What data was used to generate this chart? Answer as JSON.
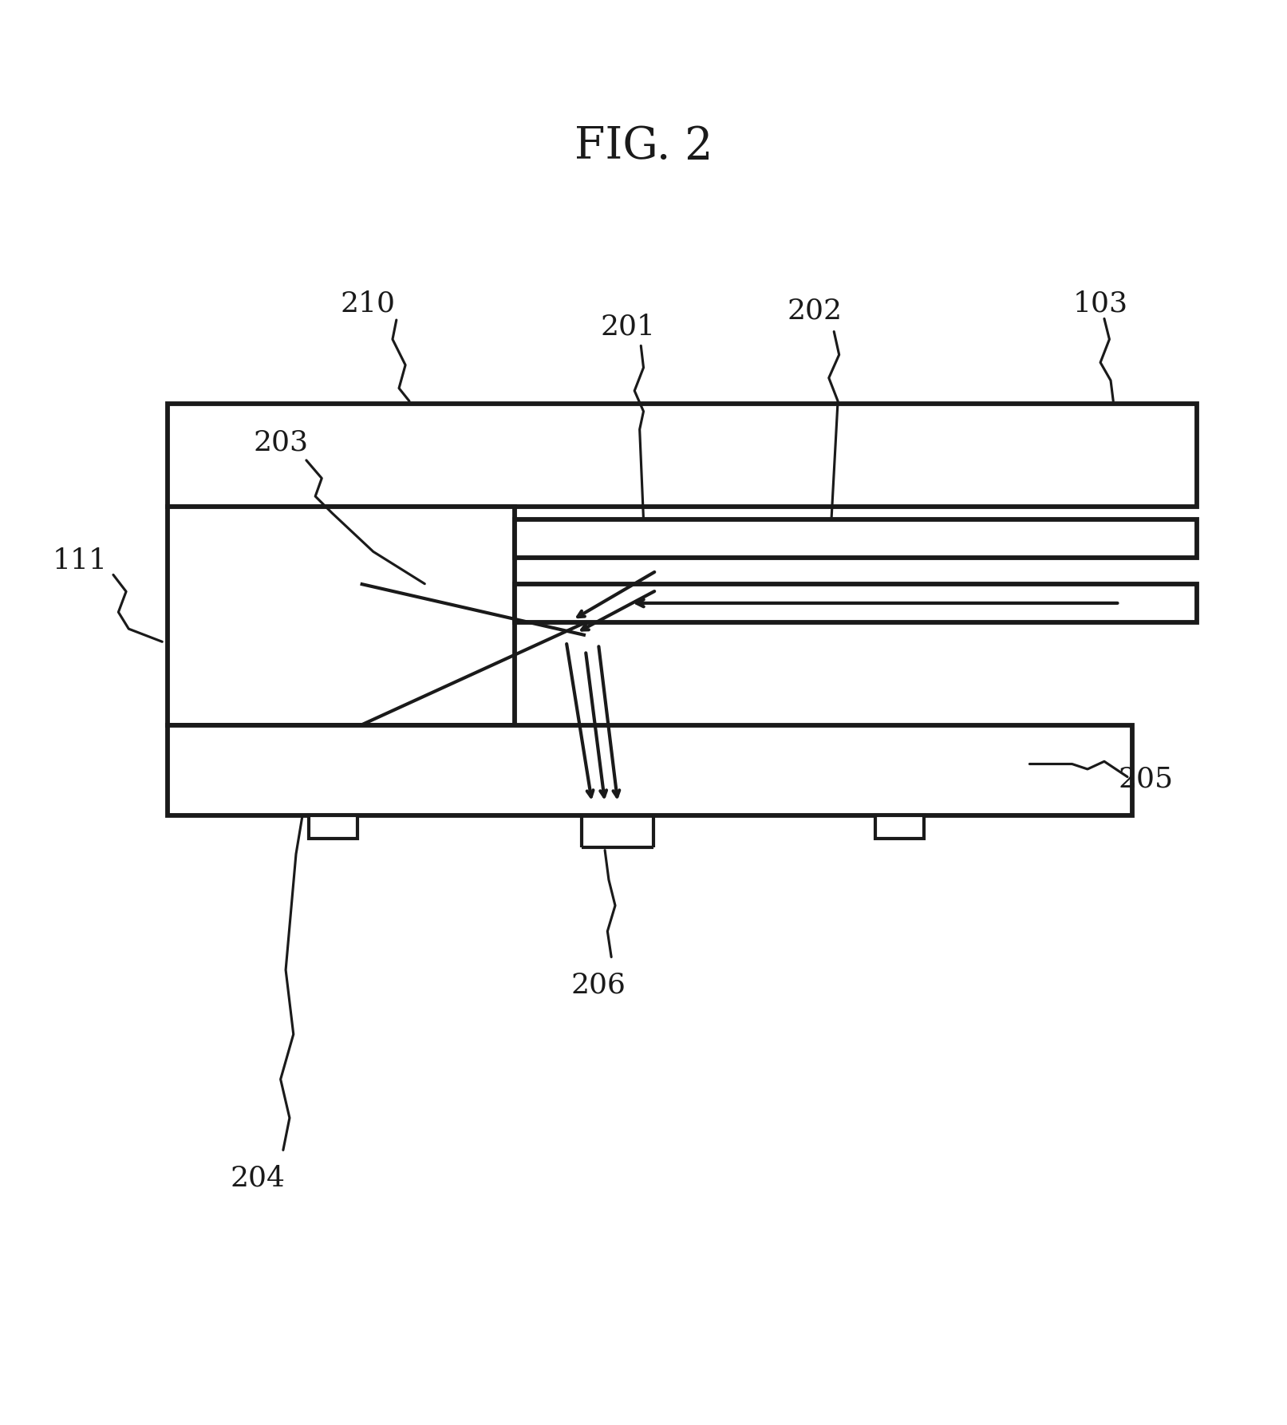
{
  "title": "FIG. 2",
  "title_fontsize": 40,
  "bg_color": "#ffffff",
  "line_color": "#1a1a1a",
  "lw": 3.0,
  "label_fontsize": 26,
  "fig_width": 16.13,
  "fig_height": 17.86,
  "dpi": 100
}
